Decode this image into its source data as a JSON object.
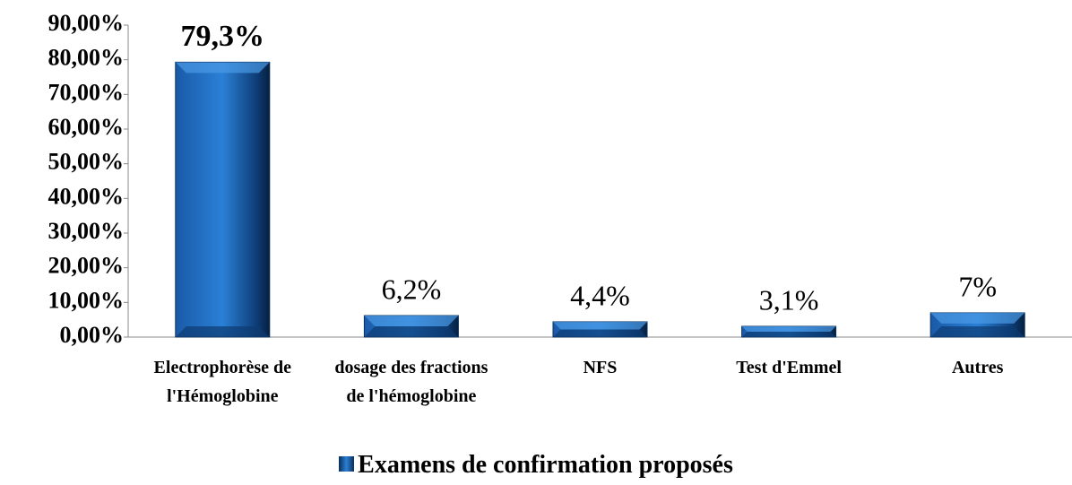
{
  "chart_data": {
    "type": "bar",
    "categories": [
      "Electrophorèse de l'Hémoglobine",
      "dosage des fractions de l'hémoglobine",
      "NFS",
      "Test d'Emmel",
      "Autres"
    ],
    "series": [
      {
        "name": "Examens de confirmation proposés",
        "color": "#1f6fc4",
        "values": [
          79.3,
          6.2,
          4.4,
          3.1,
          7
        ],
        "value_labels": [
          "79,3%",
          "6,2%",
          "4,4%",
          "3,1%",
          "7%"
        ]
      }
    ],
    "ylim": [
      0,
      90
    ],
    "yticks": [
      {
        "value": 0,
        "label": "0,00%"
      },
      {
        "value": 10,
        "label": "10,00%"
      },
      {
        "value": 20,
        "label": "20,00%"
      },
      {
        "value": 30,
        "label": "30,00%"
      },
      {
        "value": 40,
        "label": "40,00%"
      },
      {
        "value": 50,
        "label": "50,00%"
      },
      {
        "value": 60,
        "label": "60,00%"
      },
      {
        "value": 70,
        "label": "70,00%"
      },
      {
        "value": 80,
        "label": "80,00%"
      },
      {
        "value": 90,
        "label": "90,00%"
      }
    ],
    "legend": "bottom"
  }
}
